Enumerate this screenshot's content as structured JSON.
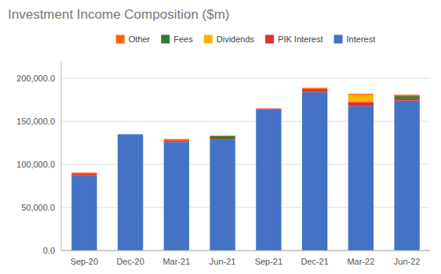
{
  "chart_data": {
    "type": "bar",
    "stacked": true,
    "title": "Investment Income Composition ($m)",
    "categories": [
      "Sep-20",
      "Dec-20",
      "Mar-21",
      "Jun-21",
      "Sep-21",
      "Dec-21",
      "Mar-22",
      "Jun-22"
    ],
    "series": [
      {
        "name": "Interest",
        "color": "#4472C4",
        "values": [
          87000,
          135000,
          126000,
          129000,
          164000,
          184000,
          168000,
          174000
        ]
      },
      {
        "name": "PIK Interest",
        "color": "#e03030",
        "values": [
          2000,
          0,
          2000,
          1000,
          1000,
          3500,
          4500,
          2500
        ]
      },
      {
        "name": "Dividends",
        "color": "#FFB300",
        "values": [
          0,
          0,
          0,
          0,
          0,
          0,
          8000,
          0
        ]
      },
      {
        "name": "Fees",
        "color": "#2e7d32",
        "values": [
          0,
          0,
          0,
          3000,
          0,
          0,
          0,
          3000
        ]
      },
      {
        "name": "Other",
        "color": "#FF6600",
        "values": [
          1500,
          0,
          1500,
          500,
          0,
          1500,
          1500,
          1500
        ]
      }
    ],
    "ylim": [
      0,
      220000
    ],
    "yticks": [
      {
        "value": 0,
        "label": "0.0"
      },
      {
        "value": 50000,
        "label": "50,000.0"
      },
      {
        "value": 100000,
        "label": "100,000.0"
      },
      {
        "value": 150000,
        "label": "150,000.0"
      },
      {
        "value": 200000,
        "label": "200,000.0"
      }
    ],
    "grid": true,
    "legend": "top"
  }
}
